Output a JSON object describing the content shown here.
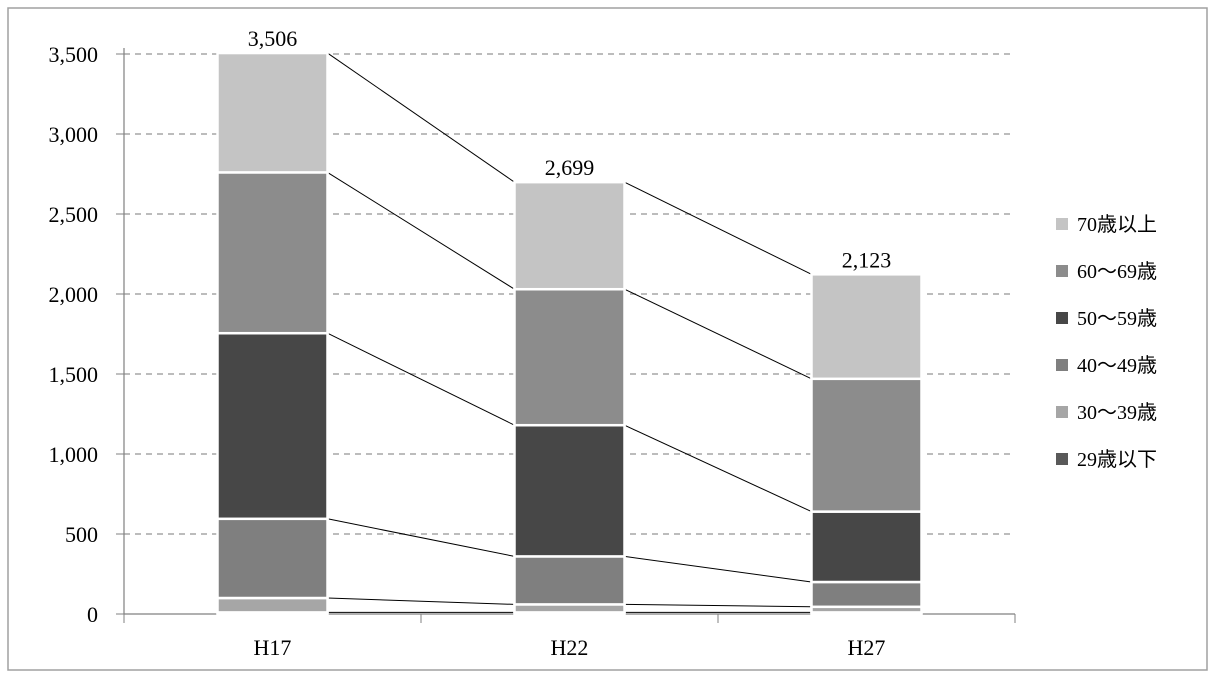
{
  "chart_data": {
    "type": "bar",
    "stacked": true,
    "categories": [
      "H17",
      "H22",
      "H27"
    ],
    "series": [
      {
        "name": "29歳以下",
        "values": [
          10,
          10,
          10
        ],
        "color": "#595959"
      },
      {
        "name": "30～39歳",
        "values": [
          90,
          50,
          35
        ],
        "color": "#a6a6a6"
      },
      {
        "name": "40～49歳",
        "values": [
          495,
          300,
          155
        ],
        "color": "#7f7f7f"
      },
      {
        "name": "50～59歳",
        "values": [
          1160,
          820,
          440
        ],
        "color": "#474747"
      },
      {
        "name": "60～69歳",
        "values": [
          1005,
          850,
          830
        ],
        "color": "#8c8c8c"
      },
      {
        "name": "70歳以上",
        "values": [
          746,
          669,
          653
        ],
        "color": "#c4c4c4"
      }
    ],
    "totals": [
      "3,506",
      "2,699",
      "2,123"
    ],
    "total_values": [
      3506,
      2699,
      2123
    ],
    "ylim": [
      0,
      3500
    ],
    "y_ticks": [
      0,
      500,
      1000,
      1500,
      2000,
      2500,
      3000,
      3500
    ],
    "y_tick_labels": [
      "0",
      "500",
      "1,000",
      "1,500",
      "2,000",
      "2,500",
      "3,000",
      "3,500"
    ],
    "grid": true,
    "grid_style": "dashed",
    "series_connector_lines": true,
    "legend_position": "right",
    "legend_order": [
      "70歳以上",
      "60～69歳",
      "50～59歳",
      "40～49歳",
      "30～39歳",
      "29歳以下"
    ],
    "title": "",
    "xlabel": "",
    "ylabel": ""
  }
}
